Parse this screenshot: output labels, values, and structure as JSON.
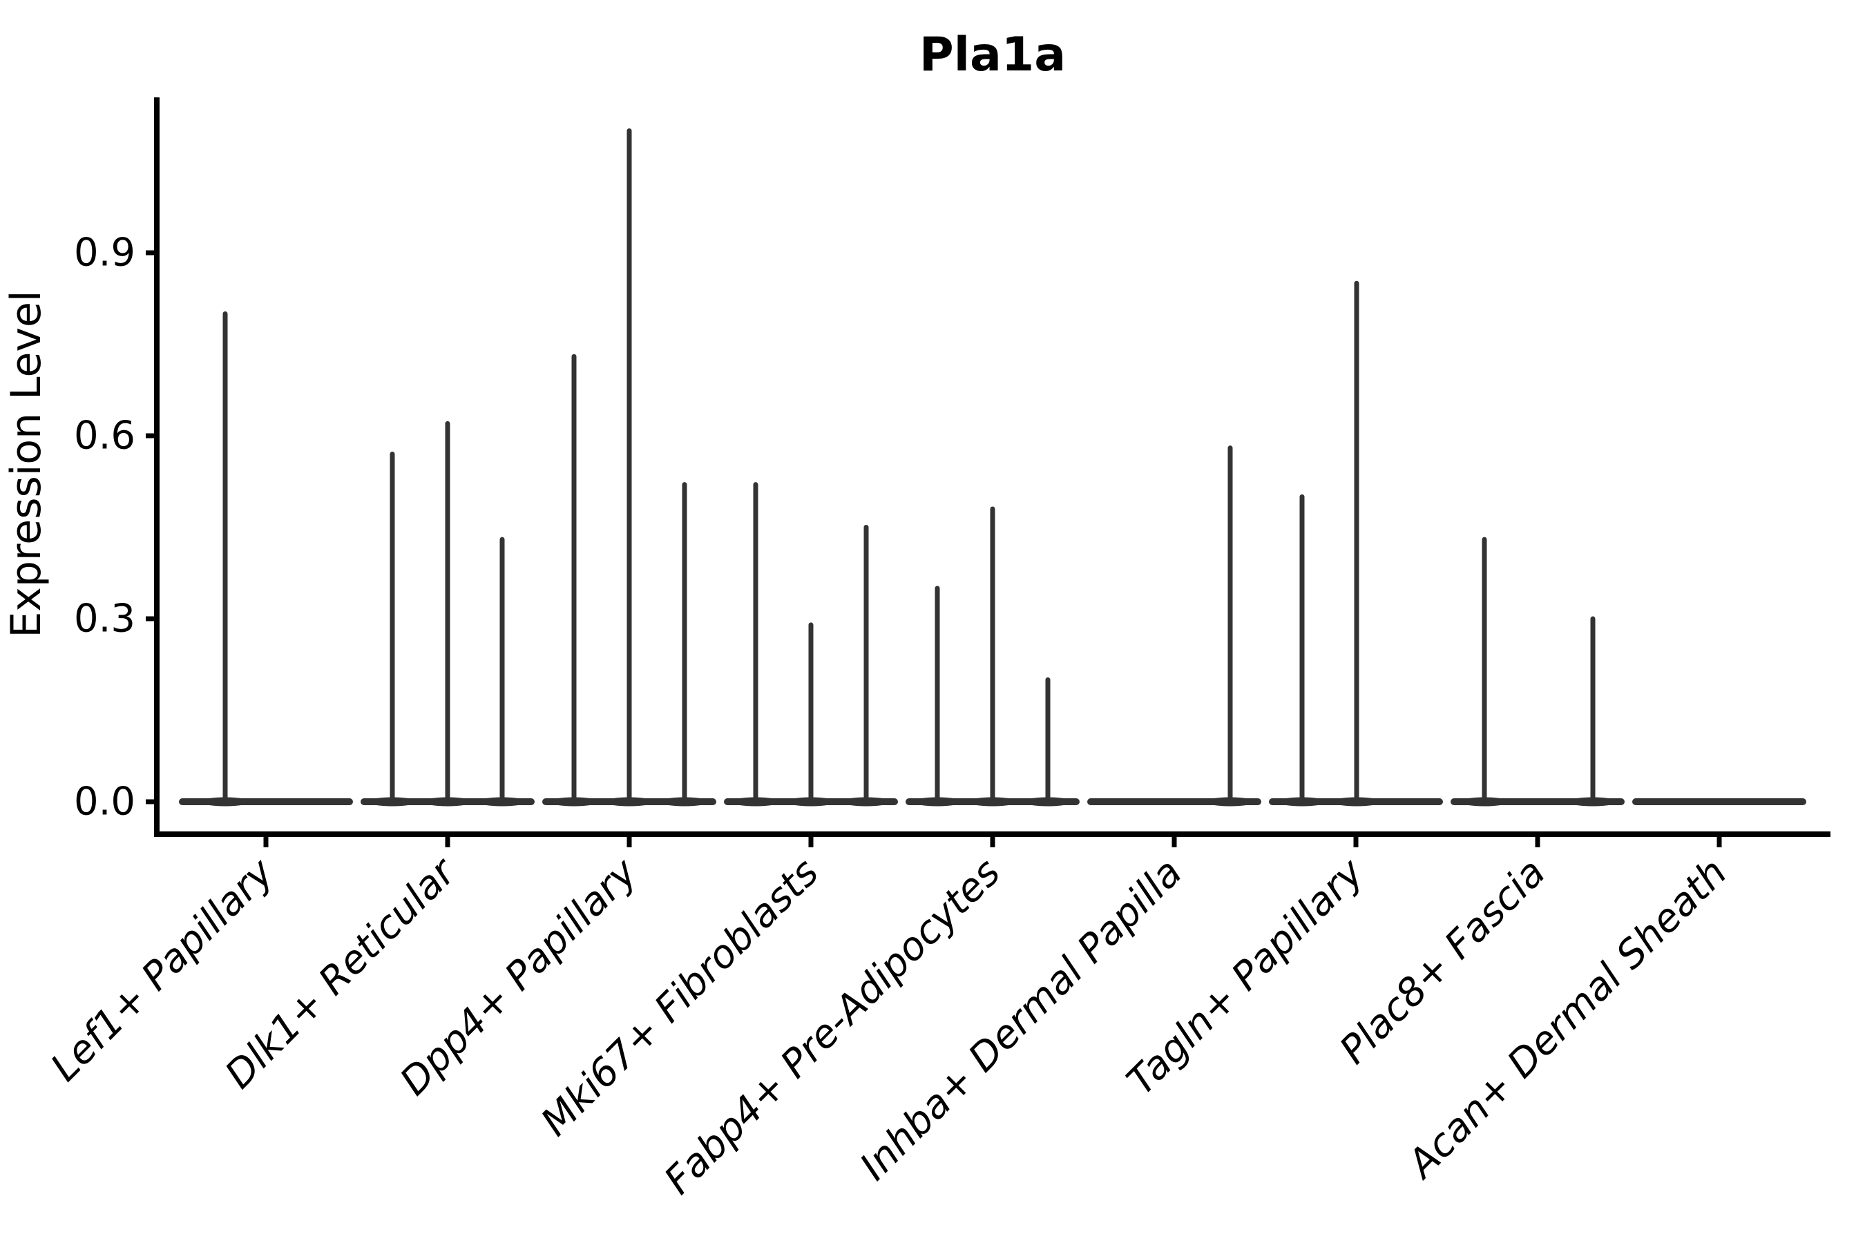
{
  "chart_data": {
    "type": "violin",
    "title": "Pla1a",
    "ylabel": "Expression Level",
    "xlabel": "",
    "legend": "none",
    "grid": false,
    "ylim": [
      -0.055,
      1.155
    ],
    "ytick_labels": [
      "0.0",
      "0.3",
      "0.6",
      "0.9"
    ],
    "ytick_values": [
      0.0,
      0.3,
      0.6,
      0.9
    ],
    "categories": [
      "Lef1+ Papillary",
      "Dlk1+ Reticular",
      "Dpp4+ Papillary",
      "Mki67+ Fibroblasts",
      "Fabp4+ Pre-Adipocytes",
      "Inhba+ Dermal Papilla",
      "Tagln+ Papillary",
      "Plac8+ Fascia",
      "Acan+ Dermal Sheath"
    ],
    "description": "Violin plot of Pla1a expression; most cells express 0 (flat violin bodies at baseline), thin spikes reach the maximum expression per dodged violin",
    "groups": [
      {
        "category": "Lef1+ Papillary",
        "spikes": [
          {
            "x_offset": -59,
            "max": 0.8
          }
        ]
      },
      {
        "category": "Dlk1+ Reticular",
        "spikes": [
          {
            "x_offset": -80,
            "max": 0.57
          },
          {
            "x_offset": 0,
            "max": 0.62
          },
          {
            "x_offset": 79,
            "max": 0.43
          }
        ]
      },
      {
        "category": "Dpp4+ Papillary",
        "spikes": [
          {
            "x_offset": -80,
            "max": 0.73
          },
          {
            "x_offset": 0,
            "max": 1.1
          },
          {
            "x_offset": 80,
            "max": 0.52
          }
        ]
      },
      {
        "category": "Mki67+ Fibroblasts",
        "spikes": [
          {
            "x_offset": -80,
            "max": 0.52
          },
          {
            "x_offset": 0,
            "max": 0.29
          },
          {
            "x_offset": 80,
            "max": 0.45
          }
        ]
      },
      {
        "category": "Fabp4+ Pre-Adipocytes",
        "spikes": [
          {
            "x_offset": -80,
            "max": 0.35
          },
          {
            "x_offset": 0,
            "max": 0.48
          },
          {
            "x_offset": 80,
            "max": 0.2
          }
        ]
      },
      {
        "category": "Inhba+ Dermal Papilla",
        "spikes": [
          {
            "x_offset": 81,
            "max": 0.58
          }
        ]
      },
      {
        "category": "Tagln+ Papillary",
        "spikes": [
          {
            "x_offset": -78,
            "max": 0.5
          },
          {
            "x_offset": 1,
            "max": 0.85
          }
        ]
      },
      {
        "category": "Plac8+ Fascia",
        "spikes": [
          {
            "x_offset": -77,
            "max": 0.43
          },
          {
            "x_offset": 80,
            "max": 0.3
          }
        ]
      },
      {
        "category": "Acan+ Dermal Sheath",
        "spikes": []
      }
    ],
    "colors": {
      "violin_stroke": "#333333",
      "axis": "#000000",
      "text": "#000000",
      "background": "#ffffff"
    }
  }
}
